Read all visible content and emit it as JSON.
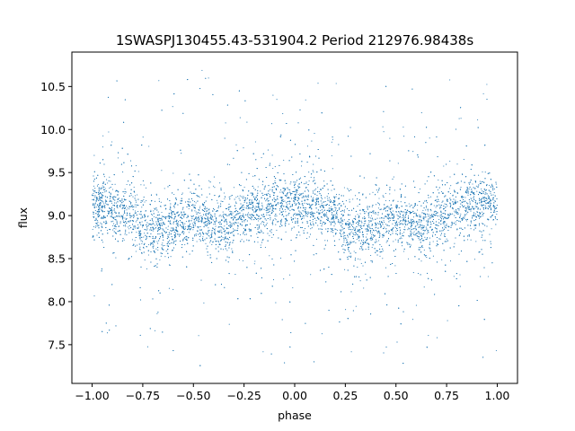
{
  "chart_data": {
    "type": "scatter",
    "title": "1SWASPJ130455.43-531904.2 Period 212976.98438s",
    "xlabel": "phase",
    "ylabel": "flux",
    "xlim": [
      -1.1,
      1.1
    ],
    "ylim": [
      7.05,
      10.9
    ],
    "x_ticks": [
      -1.0,
      -0.75,
      -0.5,
      -0.25,
      0.0,
      0.25,
      0.5,
      0.75,
      1.0
    ],
    "x_tick_labels": [
      "−1.00",
      "−0.75",
      "−0.50",
      "−0.25",
      "0.00",
      "0.25",
      "0.50",
      "0.75",
      "1.00"
    ],
    "y_ticks": [
      7.5,
      8.0,
      8.5,
      9.0,
      9.5,
      10.0,
      10.5
    ],
    "y_tick_labels": [
      "7.5",
      "8.0",
      "8.5",
      "9.0",
      "9.5",
      "10.0",
      "10.5"
    ],
    "grid": false,
    "marker_color": "#1f77b4",
    "series": [
      {
        "x": [
          -1.0,
          -0.95,
          -0.9,
          -0.85,
          -0.8,
          -0.75,
          -0.7,
          -0.65,
          -0.6,
          -0.55,
          -0.5,
          -0.45,
          -0.4,
          -0.35,
          -0.3,
          -0.25,
          -0.2,
          -0.15,
          -0.1,
          -0.05,
          0.0,
          0.05,
          0.1,
          0.15,
          0.2,
          0.25,
          0.3,
          0.35,
          0.4,
          0.45,
          0.5,
          0.55,
          0.6,
          0.65,
          0.7,
          0.75,
          0.8,
          0.85,
          0.9,
          0.95,
          1.0
        ],
        "y": [
          9.1,
          9.12,
          9.1,
          9.05,
          8.98,
          8.9,
          8.85,
          8.85,
          8.88,
          8.92,
          8.95,
          8.92,
          8.88,
          8.9,
          8.95,
          9.02,
          9.08,
          9.1,
          9.12,
          9.12,
          9.1,
          9.12,
          9.1,
          9.05,
          8.98,
          8.9,
          8.85,
          8.85,
          8.88,
          8.92,
          8.95,
          8.92,
          8.88,
          8.9,
          8.95,
          9.02,
          9.08,
          9.1,
          9.12,
          9.12,
          9.1
        ]
      }
    ]
  }
}
